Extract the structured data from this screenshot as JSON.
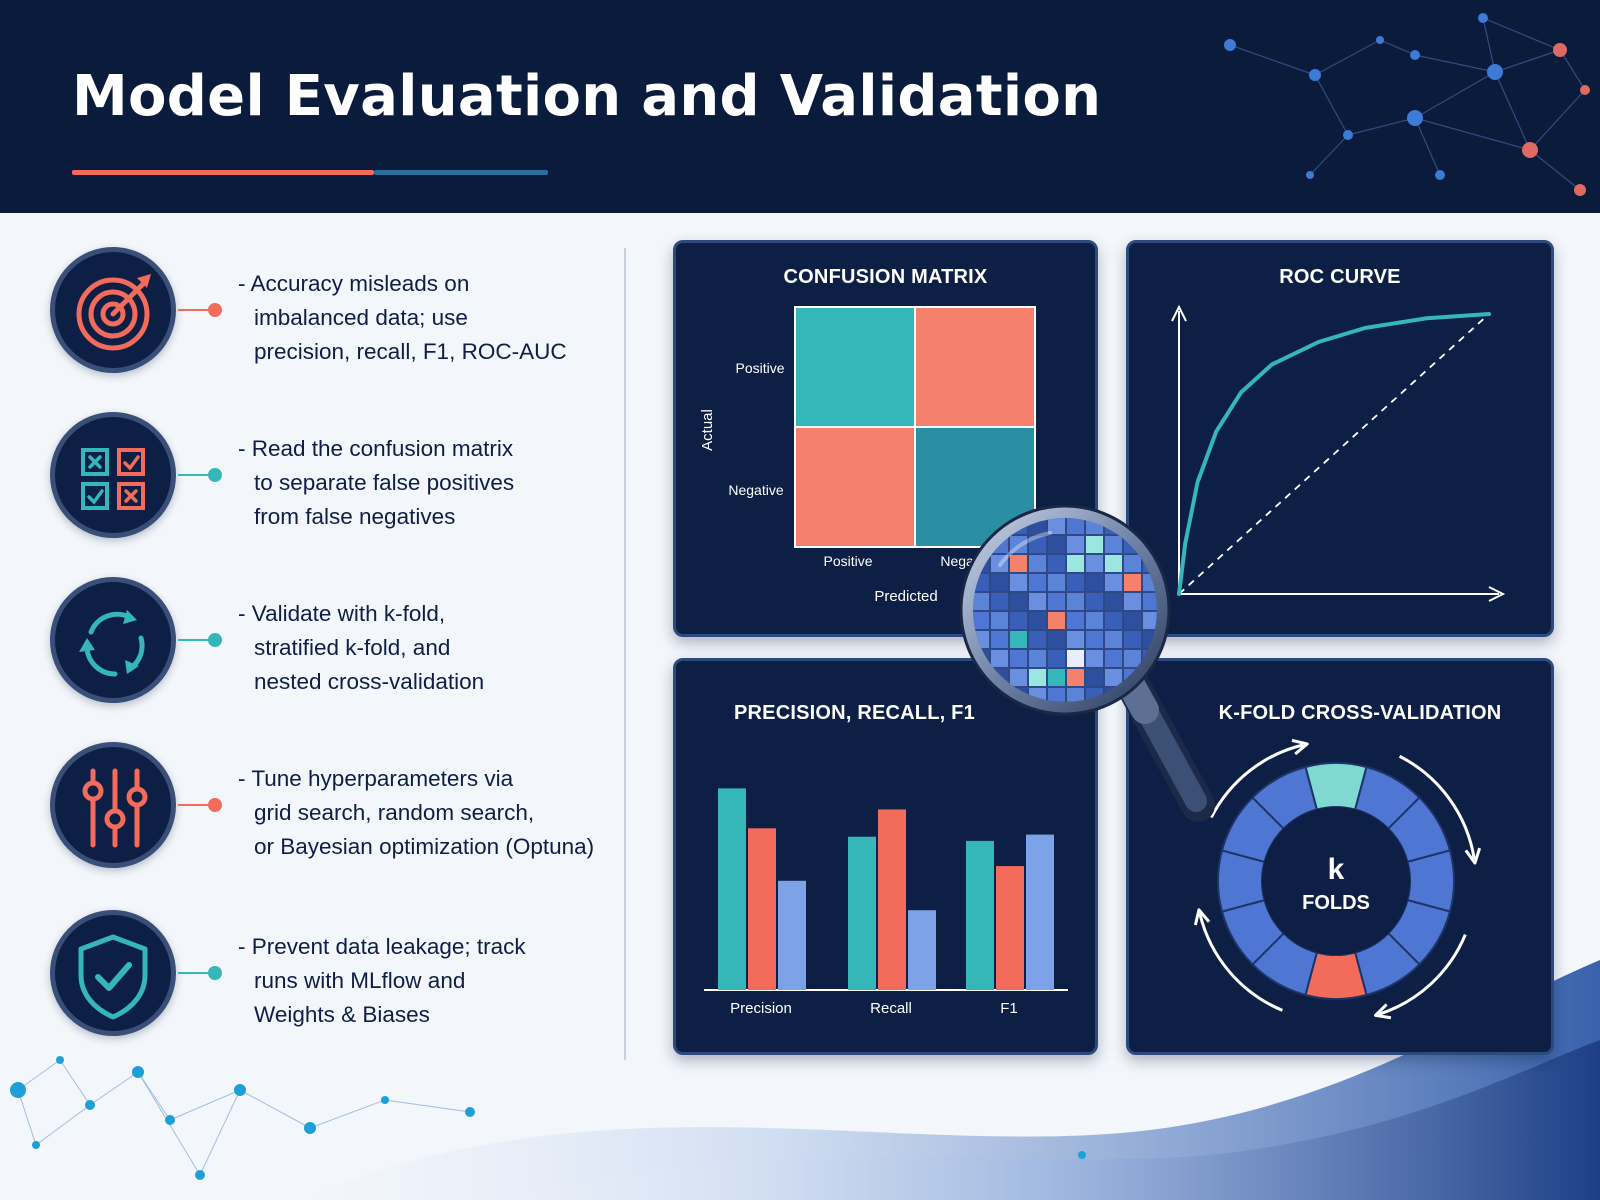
{
  "title": "Model Evaluation and Validation",
  "colors": {
    "header_bg": "#0b1b3c",
    "panel_bg": "#0e1f45",
    "coral": "#f26b5b",
    "teal": "#35b6b9",
    "blue": "#7ea2e8",
    "page_bg": "#f3f6fb"
  },
  "bullets": [
    {
      "icon": "target-icon",
      "accent": "coral",
      "lines": [
        "- Accuracy misleads on",
        "imbalanced data; use",
        "precision, recall, F1, ROC-AUC"
      ]
    },
    {
      "icon": "confusion-grid-icon",
      "accent": "teal",
      "lines": [
        "- Read the confusion matrix",
        "to separate false positives",
        "from false negatives"
      ]
    },
    {
      "icon": "cycle-arrows-icon",
      "accent": "teal",
      "lines": [
        "- Validate with k-fold,",
        "stratified k-fold, and",
        "nested cross-validation"
      ]
    },
    {
      "icon": "sliders-icon",
      "accent": "coral",
      "lines": [
        "- Tune hyperparameters via",
        "grid search, random search,",
        "or Bayesian optimization (Optuna)"
      ]
    },
    {
      "icon": "shield-check-icon",
      "accent": "teal",
      "lines": [
        "- Prevent data leakage; track",
        "runs with MLflow and",
        "Weights & Biases"
      ]
    }
  ],
  "panels": {
    "confusion": {
      "title": "CONFUSION MATRIX",
      "row_labels": [
        "Positive",
        "Negative"
      ],
      "col_labels": [
        "Positive",
        "Negative"
      ],
      "xlabel": "Predicted",
      "ylabel": "Actual"
    },
    "roc": {
      "title": "ROC CURVE"
    },
    "prf": {
      "title": "PRECISION, RECALL, F1"
    },
    "kfold": {
      "title": "K-FOLD CROSS-VALIDATION",
      "center_big": "k",
      "center_small": "FOLDS"
    }
  },
  "chart_data": [
    {
      "type": "heatmap",
      "title": "CONFUSION MATRIX",
      "xlabel": "Predicted",
      "ylabel": "Actual",
      "rows": [
        "Positive",
        "Negative"
      ],
      "cols": [
        "Positive",
        "Negative"
      ],
      "cell_colors": [
        [
          "#35b6b9",
          "#f5806b"
        ],
        [
          "#f5806b",
          "#2a8fa3"
        ]
      ]
    },
    {
      "type": "line",
      "title": "ROC CURVE",
      "series": [
        {
          "x": [
            0,
            0.02,
            0.06,
            0.12,
            0.2,
            0.3,
            0.45,
            0.6,
            0.8,
            1.0
          ],
          "values": [
            0,
            0.18,
            0.4,
            0.58,
            0.72,
            0.82,
            0.9,
            0.95,
            0.985,
            1.0
          ]
        },
        {
          "x": [
            0,
            1
          ],
          "values": [
            0,
            1
          ]
        }
      ],
      "xlim": [
        0,
        1
      ],
      "ylim": [
        0,
        1
      ]
    },
    {
      "type": "bar",
      "title": "PRECISION, RECALL, F1",
      "categories": [
        "Precision",
        "Recall",
        "F1"
      ],
      "series": [
        {
          "values": [
            0.96,
            0.73,
            0.71
          ]
        },
        {
          "values": [
            0.77,
            0.86,
            0.59
          ]
        },
        {
          "values": [
            0.52,
            0.38,
            0.74
          ]
        }
      ],
      "colors": [
        "#35b6b9",
        "#f26b5b",
        "#7ea2e8"
      ],
      "ylim": [
        0,
        1
      ]
    },
    {
      "type": "pie",
      "title": "K-FOLD CROSS-VALIDATION",
      "segments": 12,
      "highlight": {
        "teal": 0,
        "coral": 6
      }
    }
  ]
}
